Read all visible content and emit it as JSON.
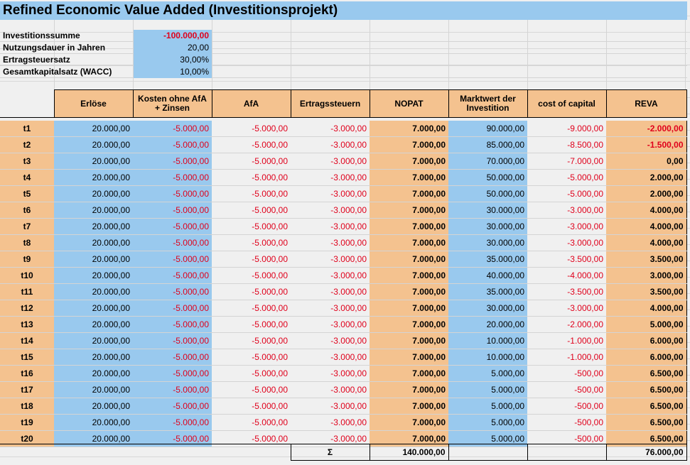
{
  "title": "Refined Economic Value Added (Investitionsprojekt)",
  "params": [
    {
      "label": "Investitionssumme",
      "value": "-100.000,00",
      "negative": true
    },
    {
      "label": "Nutzungsdauer in Jahren",
      "value": "20,00",
      "negative": false
    },
    {
      "label": "Ertragsteuersatz",
      "value": "30,00%",
      "negative": false
    },
    {
      "label": "Gesamtkapitalsatz (WACC)",
      "value": "10,00%",
      "negative": false
    }
  ],
  "headers": {
    "erloese": "Erlöse",
    "kosten": "Kosten ohne AfA + Zinsen",
    "afa": "AfA",
    "steuern": "Ertragssteuern",
    "nopat": "NOPAT",
    "marktwert": "Marktwert der Investition",
    "coc": "cost of capital",
    "reva": "REVA"
  },
  "rows": [
    {
      "t": "t1",
      "erloese": "20.000,00",
      "kosten": "-5.000,00",
      "afa": "-5.000,00",
      "steuern": "-3.000,00",
      "nopat": "7.000,00",
      "marktwert": "90.000,00",
      "coc": "-9.000,00",
      "reva": "-2.000,00"
    },
    {
      "t": "t2",
      "erloese": "20.000,00",
      "kosten": "-5.000,00",
      "afa": "-5.000,00",
      "steuern": "-3.000,00",
      "nopat": "7.000,00",
      "marktwert": "85.000,00",
      "coc": "-8.500,00",
      "reva": "-1.500,00"
    },
    {
      "t": "t3",
      "erloese": "20.000,00",
      "kosten": "-5.000,00",
      "afa": "-5.000,00",
      "steuern": "-3.000,00",
      "nopat": "7.000,00",
      "marktwert": "70.000,00",
      "coc": "-7.000,00",
      "reva": "0,00"
    },
    {
      "t": "t4",
      "erloese": "20.000,00",
      "kosten": "-5.000,00",
      "afa": "-5.000,00",
      "steuern": "-3.000,00",
      "nopat": "7.000,00",
      "marktwert": "50.000,00",
      "coc": "-5.000,00",
      "reva": "2.000,00"
    },
    {
      "t": "t5",
      "erloese": "20.000,00",
      "kosten": "-5.000,00",
      "afa": "-5.000,00",
      "steuern": "-3.000,00",
      "nopat": "7.000,00",
      "marktwert": "50.000,00",
      "coc": "-5.000,00",
      "reva": "2.000,00"
    },
    {
      "t": "t6",
      "erloese": "20.000,00",
      "kosten": "-5.000,00",
      "afa": "-5.000,00",
      "steuern": "-3.000,00",
      "nopat": "7.000,00",
      "marktwert": "30.000,00",
      "coc": "-3.000,00",
      "reva": "4.000,00"
    },
    {
      "t": "t7",
      "erloese": "20.000,00",
      "kosten": "-5.000,00",
      "afa": "-5.000,00",
      "steuern": "-3.000,00",
      "nopat": "7.000,00",
      "marktwert": "30.000,00",
      "coc": "-3.000,00",
      "reva": "4.000,00"
    },
    {
      "t": "t8",
      "erloese": "20.000,00",
      "kosten": "-5.000,00",
      "afa": "-5.000,00",
      "steuern": "-3.000,00",
      "nopat": "7.000,00",
      "marktwert": "30.000,00",
      "coc": "-3.000,00",
      "reva": "4.000,00"
    },
    {
      "t": "t9",
      "erloese": "20.000,00",
      "kosten": "-5.000,00",
      "afa": "-5.000,00",
      "steuern": "-3.000,00",
      "nopat": "7.000,00",
      "marktwert": "35.000,00",
      "coc": "-3.500,00",
      "reva": "3.500,00"
    },
    {
      "t": "t10",
      "erloese": "20.000,00",
      "kosten": "-5.000,00",
      "afa": "-5.000,00",
      "steuern": "-3.000,00",
      "nopat": "7.000,00",
      "marktwert": "40.000,00",
      "coc": "-4.000,00",
      "reva": "3.000,00"
    },
    {
      "t": "t11",
      "erloese": "20.000,00",
      "kosten": "-5.000,00",
      "afa": "-5.000,00",
      "steuern": "-3.000,00",
      "nopat": "7.000,00",
      "marktwert": "35.000,00",
      "coc": "-3.500,00",
      "reva": "3.500,00"
    },
    {
      "t": "t12",
      "erloese": "20.000,00",
      "kosten": "-5.000,00",
      "afa": "-5.000,00",
      "steuern": "-3.000,00",
      "nopat": "7.000,00",
      "marktwert": "30.000,00",
      "coc": "-3.000,00",
      "reva": "4.000,00"
    },
    {
      "t": "t13",
      "erloese": "20.000,00",
      "kosten": "-5.000,00",
      "afa": "-5.000,00",
      "steuern": "-3.000,00",
      "nopat": "7.000,00",
      "marktwert": "20.000,00",
      "coc": "-2.000,00",
      "reva": "5.000,00"
    },
    {
      "t": "t14",
      "erloese": "20.000,00",
      "kosten": "-5.000,00",
      "afa": "-5.000,00",
      "steuern": "-3.000,00",
      "nopat": "7.000,00",
      "marktwert": "10.000,00",
      "coc": "-1.000,00",
      "reva": "6.000,00"
    },
    {
      "t": "t15",
      "erloese": "20.000,00",
      "kosten": "-5.000,00",
      "afa": "-5.000,00",
      "steuern": "-3.000,00",
      "nopat": "7.000,00",
      "marktwert": "10.000,00",
      "coc": "-1.000,00",
      "reva": "6.000,00"
    },
    {
      "t": "t16",
      "erloese": "20.000,00",
      "kosten": "-5.000,00",
      "afa": "-5.000,00",
      "steuern": "-3.000,00",
      "nopat": "7.000,00",
      "marktwert": "5.000,00",
      "coc": "-500,00",
      "reva": "6.500,00"
    },
    {
      "t": "t17",
      "erloese": "20.000,00",
      "kosten": "-5.000,00",
      "afa": "-5.000,00",
      "steuern": "-3.000,00",
      "nopat": "7.000,00",
      "marktwert": "5.000,00",
      "coc": "-500,00",
      "reva": "6.500,00"
    },
    {
      "t": "t18",
      "erloese": "20.000,00",
      "kosten": "-5.000,00",
      "afa": "-5.000,00",
      "steuern": "-3.000,00",
      "nopat": "7.000,00",
      "marktwert": "5.000,00",
      "coc": "-500,00",
      "reva": "6.500,00"
    },
    {
      "t": "t19",
      "erloese": "20.000,00",
      "kosten": "-5.000,00",
      "afa": "-5.000,00",
      "steuern": "-3.000,00",
      "nopat": "7.000,00",
      "marktwert": "5.000,00",
      "coc": "-500,00",
      "reva": "6.500,00"
    },
    {
      "t": "t20",
      "erloese": "20.000,00",
      "kosten": "-5.000,00",
      "afa": "-5.000,00",
      "steuern": "-3.000,00",
      "nopat": "7.000,00",
      "marktwert": "5.000,00",
      "coc": "-500,00",
      "reva": "6.500,00"
    }
  ],
  "totals": {
    "sigma": "Σ",
    "nopat": "140.000,00",
    "reva": "76.000,00"
  },
  "colors": {
    "blue": "#99c9ee",
    "orange": "#f4c28f",
    "negative": "#e0001b"
  }
}
